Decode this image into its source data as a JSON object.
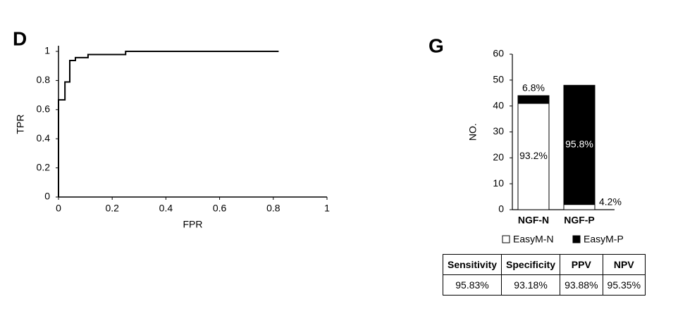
{
  "chart_data": [
    {
      "type": "line",
      "label": "D",
      "x_label": "FPR",
      "y_label": "TPR",
      "x": [
        0,
        0,
        0.024,
        0.024,
        0.042,
        0.042,
        0.063,
        0.063,
        0.11,
        0.11,
        0.25,
        0.25,
        0.82
      ],
      "y": [
        0,
        0.667,
        0.667,
        0.79,
        0.79,
        0.937,
        0.937,
        0.957,
        0.957,
        0.978,
        0.978,
        1,
        1
      ],
      "color": "#000000",
      "xlim": [
        0,
        1
      ],
      "ylim": [
        0,
        1
      ],
      "xticks": [
        0,
        0.2,
        0.4,
        0.6,
        0.8,
        1
      ],
      "yticks": [
        0,
        0.2,
        0.4,
        0.6,
        0.8,
        1
      ]
    },
    {
      "type": "stacked_bar",
      "label": "G",
      "y_label": "NO.",
      "categories": [
        "NGF-N",
        "NGF-P"
      ],
      "series": [
        {
          "name": "EasyM-N",
          "color": "#ffffff",
          "values": [
            41,
            2
          ],
          "value_labels": [
            "93.2%",
            "4.2%"
          ]
        },
        {
          "name": "EasyM-P",
          "color": "#000000",
          "values": [
            3,
            46
          ],
          "value_labels": [
            "6.8%",
            "95.8%"
          ]
        }
      ],
      "ylim": [
        0,
        60
      ],
      "yticks": [
        0,
        10,
        20,
        30,
        40,
        50,
        60
      ]
    }
  ],
  "table": {
    "header": [
      "Sensitivity",
      "Specificity",
      "PPV",
      "NPV"
    ],
    "rows": [
      [
        "95.83%",
        "93.18%",
        "93.88%",
        "95.35%"
      ]
    ]
  }
}
